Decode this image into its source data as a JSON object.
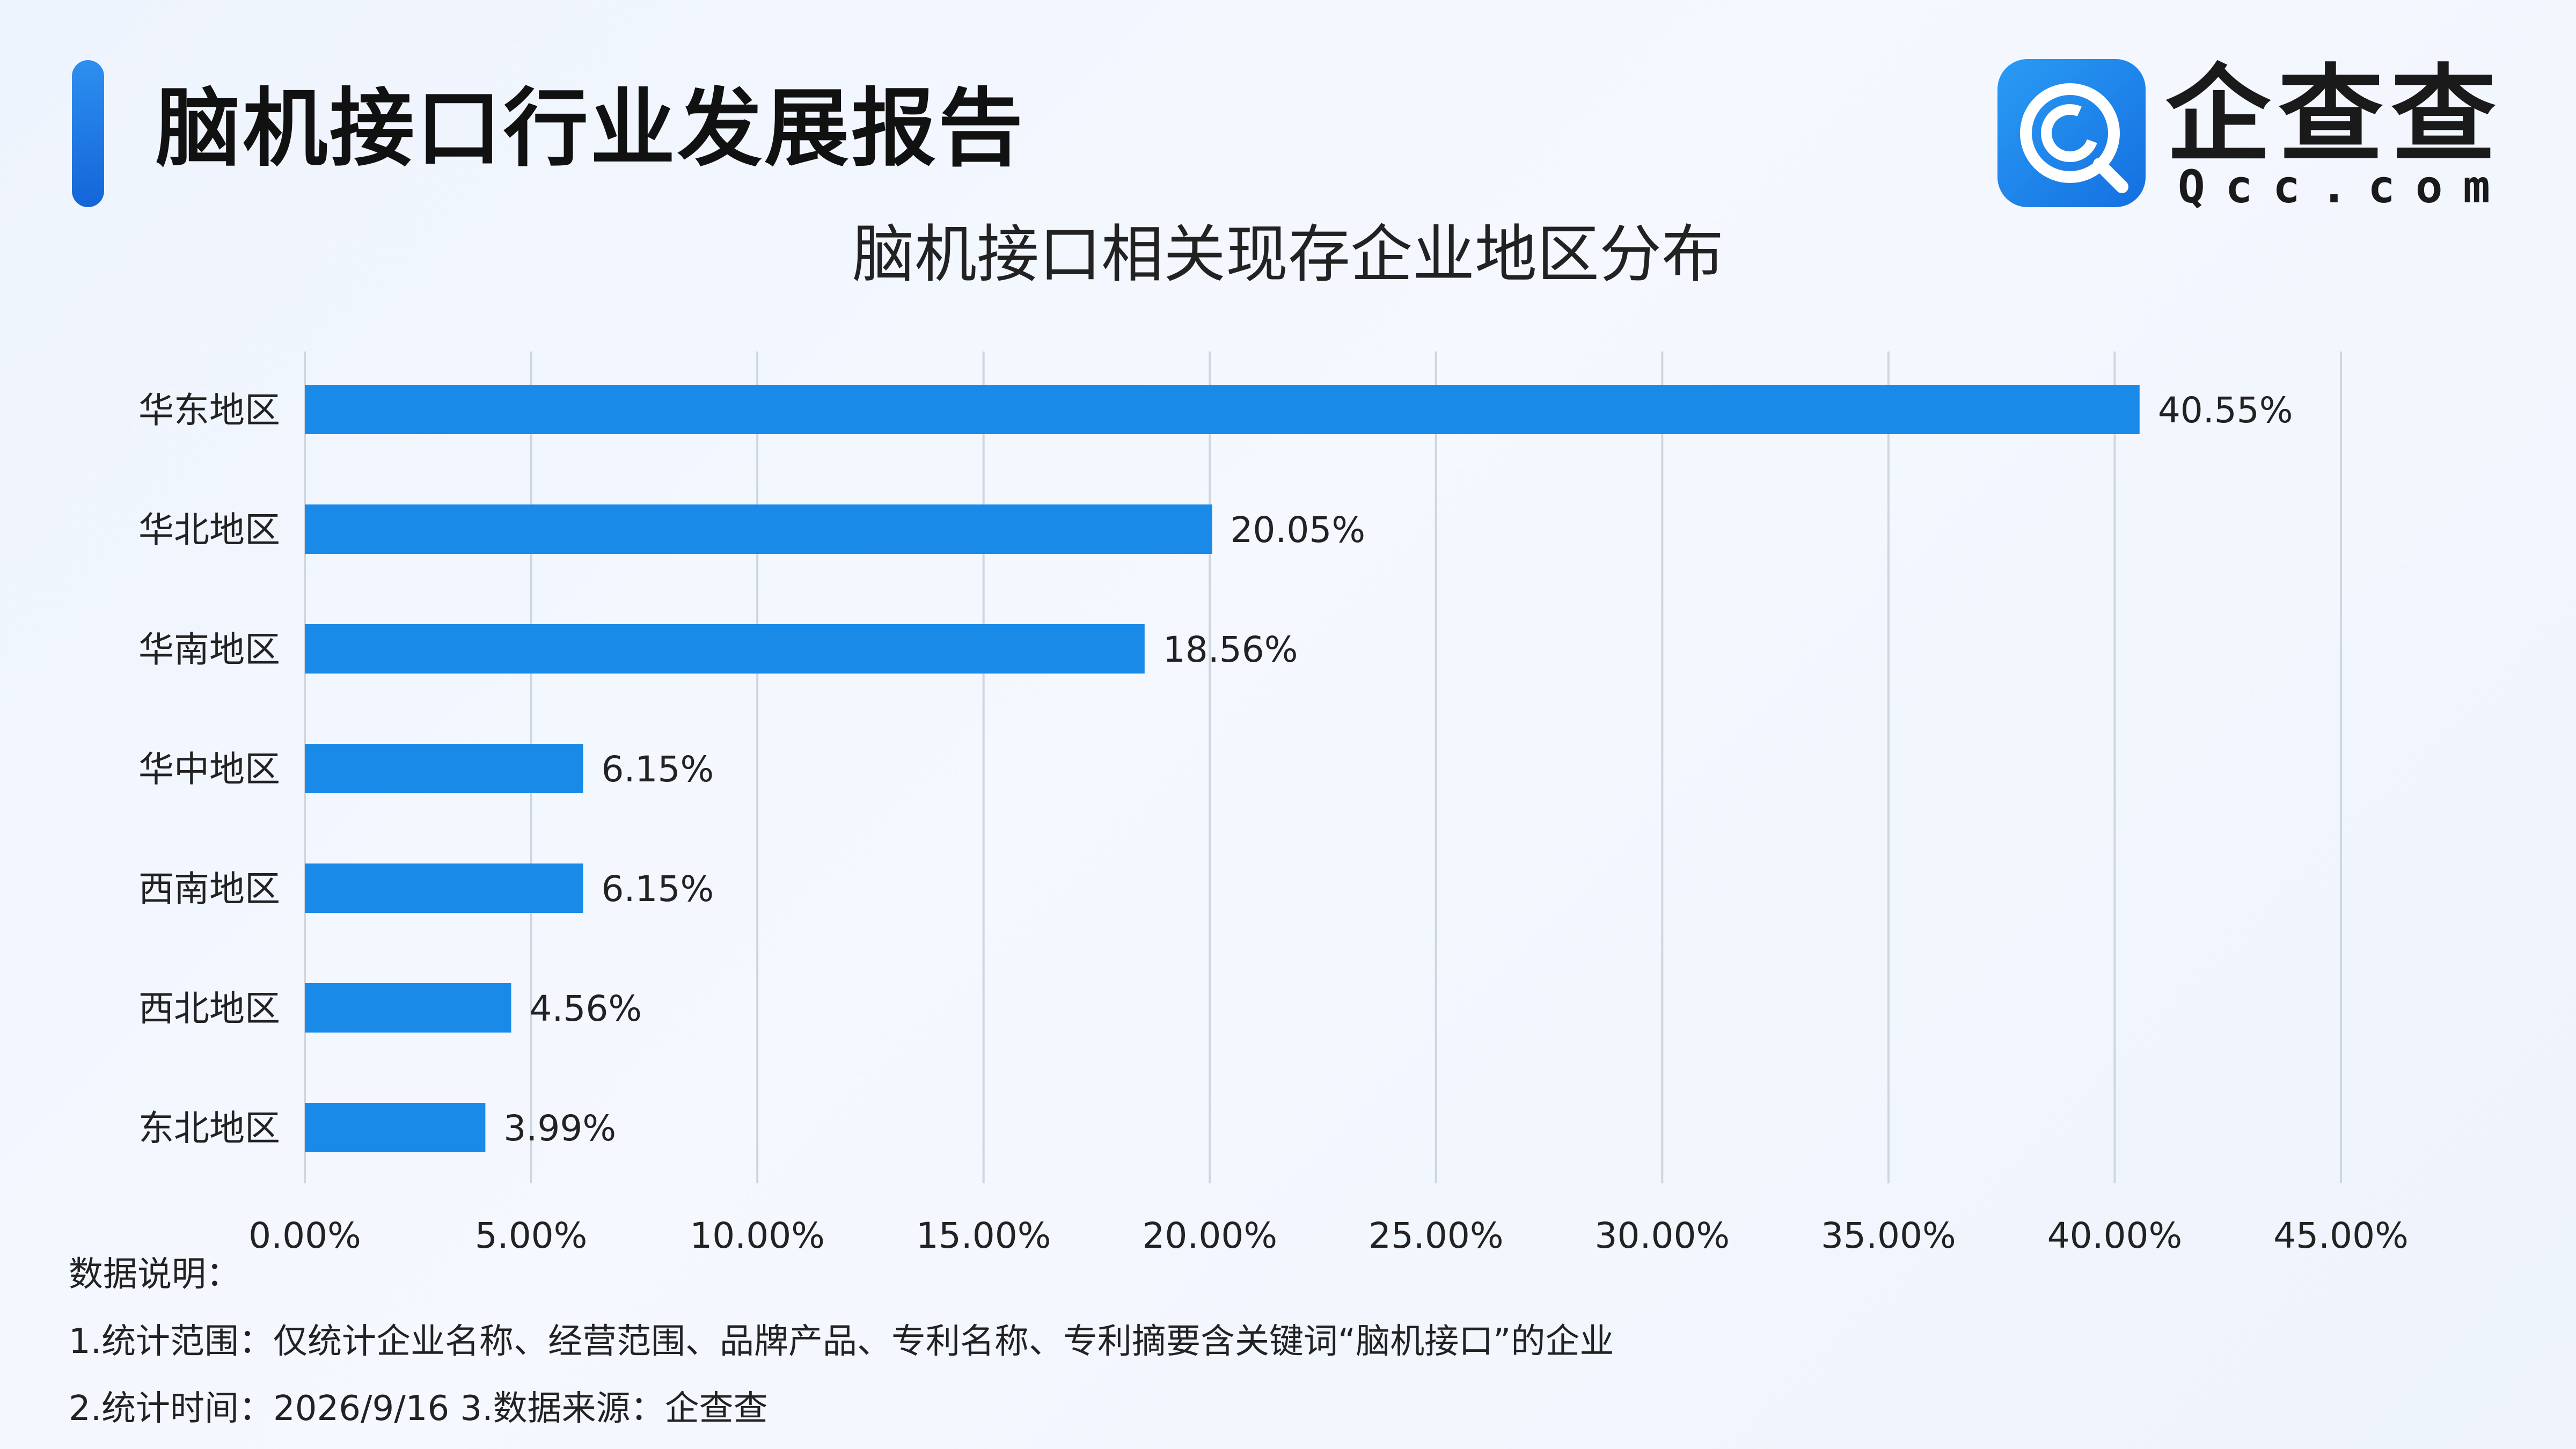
{
  "header": {
    "report_title": "脑机接口行业发展报告",
    "brand_name": "企查查",
    "brand_domain": "Qcc.com"
  },
  "colors": {
    "bar": "#1a8ae8",
    "accent": "#1a7ae8",
    "grid": "#cfd6e0"
  },
  "chart_data": {
    "type": "bar",
    "orientation": "horizontal",
    "title": "脑机接口相关现存企业地区分布",
    "categories": [
      "华东地区",
      "华北地区",
      "华南地区",
      "华中地区",
      "西南地区",
      "西北地区",
      "东北地区"
    ],
    "values": [
      40.55,
      20.05,
      18.56,
      6.15,
      6.15,
      4.56,
      3.99
    ],
    "value_labels": [
      "40.55%",
      "20.05%",
      "18.56%",
      "6.15%",
      "6.15%",
      "4.56%",
      "3.99%"
    ],
    "x_ticks": [
      0,
      5,
      10,
      15,
      20,
      25,
      30,
      35,
      40,
      45
    ],
    "x_tick_labels": [
      "0.00%",
      "5.00%",
      "10.00%",
      "15.00%",
      "20.00%",
      "25.00%",
      "30.00%",
      "35.00%",
      "40.00%",
      "45.00%"
    ],
    "xlim": [
      0,
      45
    ],
    "xlabel": "",
    "ylabel": "",
    "grid": "vertical",
    "legend": "none"
  },
  "notes": {
    "heading": "数据说明：",
    "line1": "1.统计范围：仅统计企业名称、经营范围、品牌产品、专利名称、专利摘要含关键词“脑机接口”的企业",
    "line2": "2.统计时间：2026/9/16  3.数据来源：企查查"
  }
}
